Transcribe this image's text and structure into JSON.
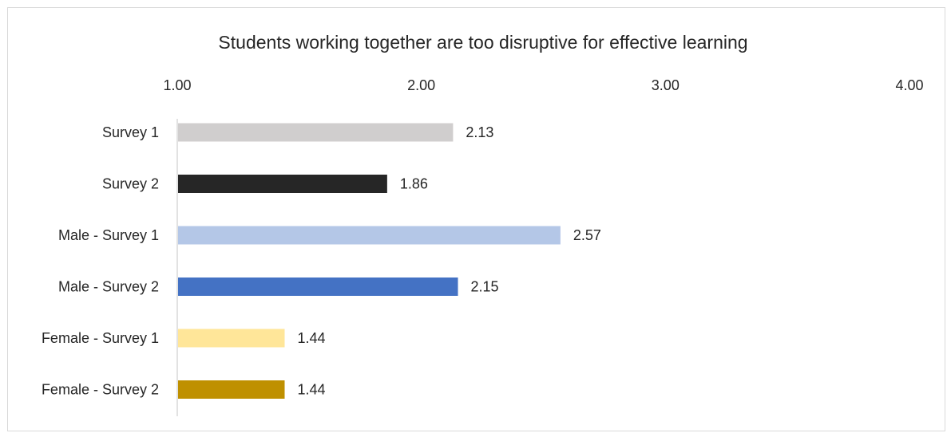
{
  "chart_data": {
    "type": "bar",
    "orientation": "horizontal",
    "title": "Students working together are too disruptive for effective learning",
    "xlabel": "",
    "ylabel": "",
    "xlim": [
      1.0,
      4.0
    ],
    "ticks": [
      1.0,
      2.0,
      3.0,
      4.0
    ],
    "tick_labels": [
      "1.00",
      "2.00",
      "3.00",
      "4.00"
    ],
    "axis_position": "top",
    "grid": false,
    "legend": "none",
    "categories": [
      "Survey 1",
      "Survey 2",
      "Male - Survey 1",
      "Male - Survey 2",
      "Female - Survey 1",
      "Female - Survey 2"
    ],
    "values": [
      2.13,
      1.86,
      2.57,
      2.15,
      1.44,
      1.44
    ],
    "value_labels": [
      "2.13",
      "1.86",
      "2.57",
      "2.15",
      "1.44",
      "1.44"
    ],
    "colors": [
      "#d0cece",
      "#262626",
      "#b4c7e7",
      "#4472c4",
      "#ffe699",
      "#bf9000"
    ]
  }
}
